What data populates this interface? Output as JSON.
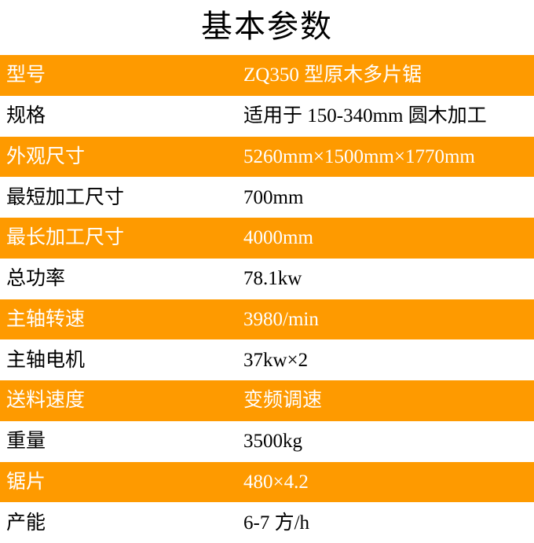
{
  "page": {
    "title": "基本参数"
  },
  "colors": {
    "accent_orange": "#FE9A00",
    "text_on_orange": "#FFFFFF",
    "text": "#000000",
    "background": "#FFFFFF"
  },
  "table": {
    "rows": [
      {
        "label": "型号",
        "value": "ZQ350 型原木多片锯"
      },
      {
        "label": "规格",
        "value": "适用于 150-340mm 圆木加工"
      },
      {
        "label": "外观尺寸",
        "value": "5260mm×1500mm×1770mm"
      },
      {
        "label": "最短加工尺寸",
        "value": "700mm"
      },
      {
        "label": "最长加工尺寸",
        "value": "4000mm"
      },
      {
        "label": "总功率",
        "value": "78.1kw"
      },
      {
        "label": "主轴转速",
        "value": "3980/min"
      },
      {
        "label": "主轴电机",
        "value": "37kw×2"
      },
      {
        "label": "送料速度",
        "value": "变频调速"
      },
      {
        "label": "重量",
        "value": "3500kg"
      },
      {
        "label": "锯片",
        "value": "480×4.2"
      },
      {
        "label": "产能",
        "value": "6-7 方/h"
      }
    ]
  }
}
